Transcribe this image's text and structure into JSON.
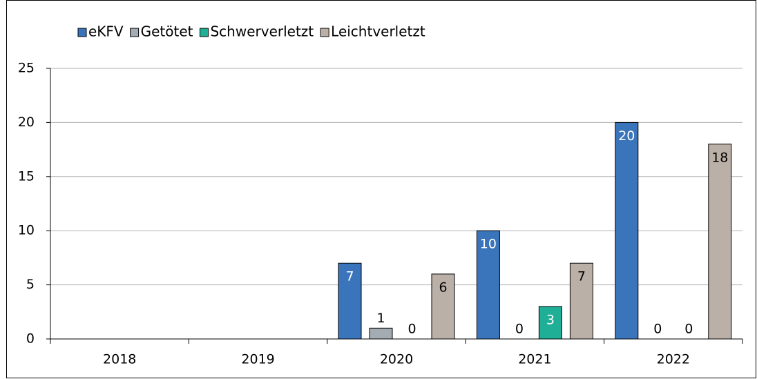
{
  "chart_data": {
    "type": "bar",
    "categories": [
      "2018",
      "2019",
      "2020",
      "2021",
      "2022"
    ],
    "series": [
      {
        "name": "eKFV",
        "color": "#3a75bb",
        "label_color": "#ffffff",
        "values": [
          null,
          null,
          7,
          10,
          20
        ]
      },
      {
        "name": "Getötet",
        "color": "#a3abb3",
        "label_color": "#000000",
        "values": [
          null,
          null,
          1,
          0,
          0
        ]
      },
      {
        "name": "Schwerverletzt",
        "color": "#1fae96",
        "label_color": "#ffffff",
        "values": [
          null,
          null,
          0,
          3,
          0
        ]
      },
      {
        "name": "Leichtverletzt",
        "color": "#bbb0a8",
        "label_color": "#000000",
        "values": [
          null,
          null,
          6,
          7,
          18
        ]
      }
    ],
    "ylim": [
      0,
      25
    ],
    "yticks": [
      0,
      5,
      10,
      15,
      20,
      25
    ],
    "grid": true,
    "legend": "top"
  }
}
